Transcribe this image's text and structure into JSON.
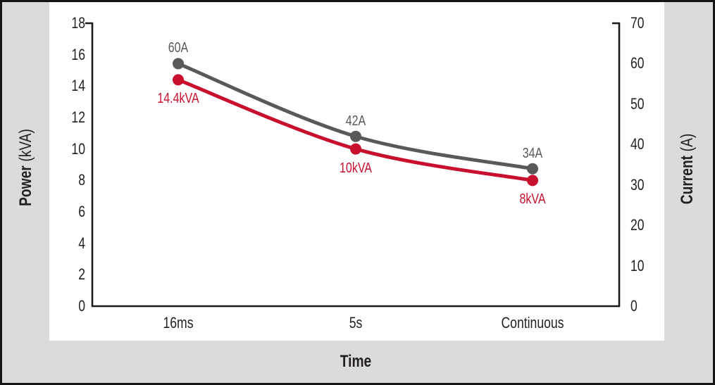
{
  "frame": {
    "background_color": "#DBDBDB",
    "panel_color": "#FFFFFF",
    "border_color": "#141414"
  },
  "chart_data": {
    "type": "line",
    "title": "",
    "xlabel": "Time",
    "categories": [
      "16ms",
      "5s",
      "Continuous"
    ],
    "grid": false,
    "legend": false,
    "axis_color": "#1A1A1A",
    "text_color": "#231F20",
    "left_axis": {
      "title": "Power",
      "unit": "(kVA)",
      "min": 0,
      "max": 18,
      "ticks": [
        0,
        2,
        4,
        6,
        8,
        10,
        12,
        14,
        16,
        18
      ]
    },
    "right_axis": {
      "title": "Current",
      "unit": "(A)",
      "min": 0,
      "max": 70,
      "ticks": [
        0,
        10,
        20,
        30,
        40,
        50,
        60,
        70
      ]
    },
    "series": [
      {
        "name": "Current",
        "axis": "right",
        "color": "#58595B",
        "values": [
          60,
          42,
          34
        ],
        "point_labels": [
          "60A",
          "42A",
          "34A"
        ],
        "label_side": "above"
      },
      {
        "name": "Power",
        "axis": "left",
        "color": "#C8102E",
        "values": [
          14.4,
          10,
          8
        ],
        "point_labels": [
          "14.4kVA",
          "10kVA",
          "8kVA"
        ],
        "label_side": "below"
      }
    ]
  }
}
